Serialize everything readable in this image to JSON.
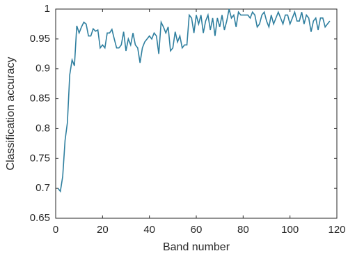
{
  "chart_data": {
    "type": "line",
    "x_label": "Band number",
    "y_label": "Classification accuracy",
    "x": [
      1,
      2,
      3,
      4,
      5,
      6,
      7,
      8,
      9,
      10,
      11,
      12,
      13,
      14,
      15,
      16,
      17,
      18,
      19,
      20,
      21,
      22,
      23,
      24,
      25,
      26,
      27,
      28,
      29,
      30,
      31,
      32,
      33,
      34,
      35,
      36,
      37,
      38,
      39,
      40,
      41,
      42,
      43,
      44,
      45,
      46,
      47,
      48,
      49,
      50,
      51,
      52,
      53,
      54,
      55,
      56,
      57,
      58,
      59,
      60,
      61,
      62,
      63,
      64,
      65,
      66,
      67,
      68,
      69,
      70,
      71,
      72,
      73,
      74,
      75,
      76,
      77,
      78,
      79,
      80,
      81,
      82,
      83,
      84,
      85,
      86,
      87,
      88,
      89,
      90,
      91,
      92,
      93,
      94,
      95,
      96,
      97,
      98,
      99,
      100,
      101,
      102,
      103,
      104,
      105,
      106,
      107,
      108,
      109,
      110,
      111,
      112,
      113,
      114,
      115,
      116,
      117
    ],
    "series": [
      {
        "name": "Classification accuracy",
        "color": "#2f7f9f",
        "values": [
          0.7,
          0.695,
          0.72,
          0.78,
          0.81,
          0.89,
          0.915,
          0.905,
          0.972,
          0.96,
          0.97,
          0.978,
          0.975,
          0.955,
          0.955,
          0.967,
          0.963,
          0.965,
          0.935,
          0.94,
          0.935,
          0.96,
          0.96,
          0.966,
          0.95,
          0.935,
          0.935,
          0.94,
          0.962,
          0.93,
          0.95,
          0.94,
          0.96,
          0.94,
          0.935,
          0.91,
          0.935,
          0.945,
          0.95,
          0.955,
          0.95,
          0.96,
          0.955,
          0.925,
          0.978,
          0.97,
          0.96,
          0.97,
          0.93,
          0.935,
          0.962,
          0.945,
          0.955,
          0.935,
          0.94,
          0.94,
          0.99,
          0.985,
          0.96,
          0.99,
          0.975,
          0.99,
          0.96,
          0.98,
          0.99,
          0.965,
          0.985,
          0.955,
          0.985,
          0.97,
          0.99,
          0.965,
          0.98,
          1.0,
          0.985,
          0.99,
          0.97,
          0.995,
          0.99,
          0.99,
          0.99,
          0.99,
          0.985,
          0.995,
          0.99,
          0.97,
          0.975,
          0.99,
          0.995,
          0.98,
          0.97,
          0.99,
          0.975,
          0.985,
          0.995,
          0.985,
          0.975,
          0.99,
          0.99,
          0.975,
          0.985,
          0.995,
          0.98,
          0.98,
          0.995,
          0.975,
          0.99,
          0.985,
          0.962,
          0.98,
          0.985,
          0.965,
          0.985,
          0.985,
          0.97,
          0.975,
          0.98
        ]
      }
    ],
    "xlim": [
      0,
      120
    ],
    "xticks": [
      0,
      20,
      40,
      60,
      80,
      100,
      120
    ],
    "ylim": [
      0.65,
      1
    ],
    "yticks": [
      0.65,
      0.7,
      0.75,
      0.8,
      0.85,
      0.9,
      0.95,
      1
    ],
    "grid": false
  }
}
